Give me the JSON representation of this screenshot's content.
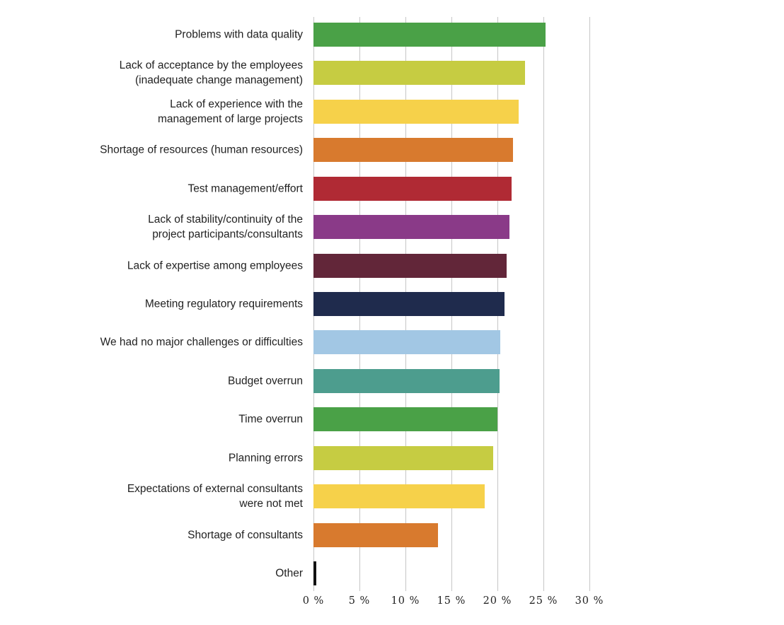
{
  "chart_data": {
    "type": "bar",
    "orientation": "horizontal",
    "title": "",
    "xlabel": "",
    "ylabel": "",
    "xlim": [
      0,
      30
    ],
    "grid": "vertical-gridlines",
    "gridline_color": "#c6c6c6",
    "x_tick_labels": [
      "0 %",
      "5 %",
      "10 %",
      "15 %",
      "20 %",
      "25 %",
      "30 %"
    ],
    "x_tick_values": [
      0,
      5,
      10,
      15,
      20,
      25,
      30
    ],
    "legend": "none",
    "categories": [
      "Problems with data quality",
      "Lack of acceptance by the employees\n(inadequate change management)",
      "Lack of experience with the\nmanagement of large projects",
      "Shortage of resources (human resources)",
      "Test management/effort",
      "Lack of stability/continuity of the\nproject participants/consultants",
      "Lack of expertise among employees",
      "Meeting regulatory requirements",
      "We had no major challenges or difficulties",
      "Budget overrun",
      "Time overrun",
      "Planning errors",
      "Expectations of external consultants\nwere not met",
      "Shortage of consultants",
      "Other"
    ],
    "values": [
      25.2,
      23.0,
      22.3,
      21.7,
      21.5,
      21.3,
      21.0,
      20.8,
      20.3,
      20.2,
      20.0,
      19.5,
      18.6,
      13.5,
      0.3
    ],
    "unit": "%",
    "bar_colors": [
      "#4aa147",
      "#c6cc42",
      "#f6d14a",
      "#d87a2e",
      "#b02a34",
      "#8a3a88",
      "#622639",
      "#1f2b4d",
      "#a2c7e4",
      "#4d9d8e",
      "#4aa147",
      "#c6cc42",
      "#f6d14a",
      "#d87a2e",
      "#111111"
    ]
  }
}
